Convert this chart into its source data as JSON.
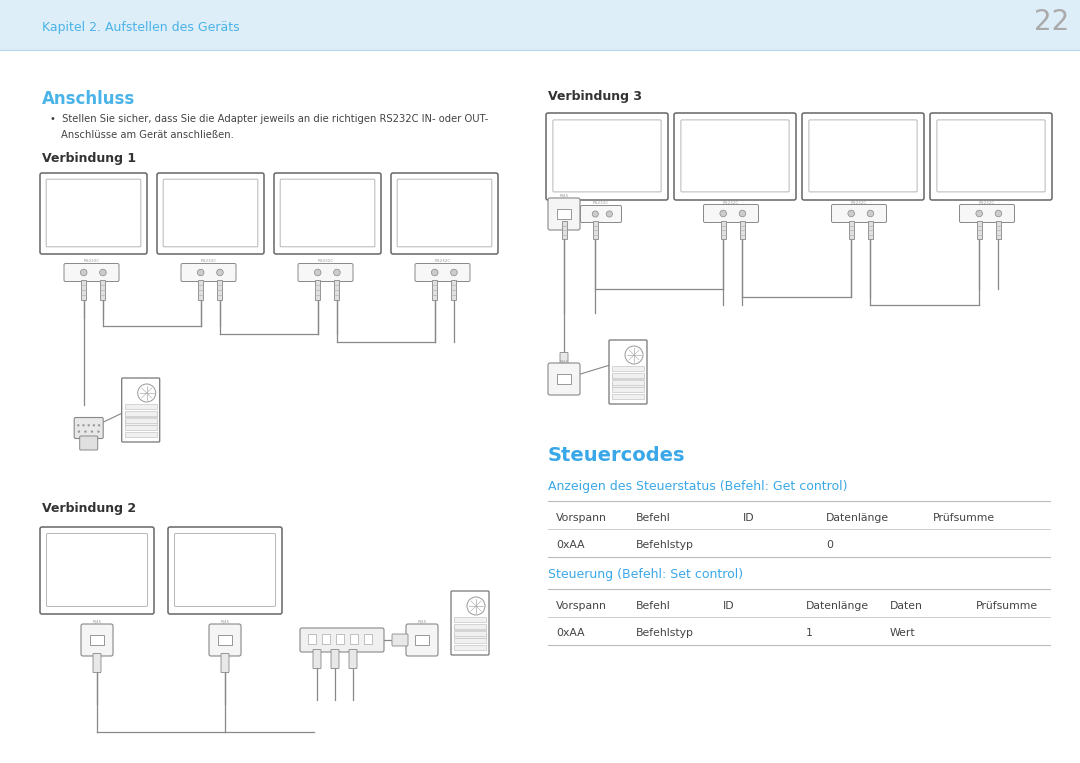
{
  "bg_header_color": "#deeef8",
  "bg_body_color": "#ffffff",
  "header_text": "Kapitel 2. Aufstellen des Geräts",
  "header_text_color": "#4ab3e8",
  "page_number": "22",
  "section_anschluss": "Anschluss",
  "section_anschluss_color": "#4ab3e8",
  "bullet_text_line1": "Stellen Sie sicher, dass Sie die Adapter jeweils an die richtigen RS232C IN- oder OUT-",
  "bullet_text_line2": "Anschlüsse am Gerät anschließen.",
  "bullet_color": "#444444",
  "verbindung1": "Verbindung 1",
  "verbindung2": "Verbindung 2",
  "verbindung3": "Verbindung 3",
  "verbindung_color": "#333333",
  "steuercodes_title": "Steuercodes",
  "steuercodes_color": "#3aa8e8",
  "anzeigen_title": "Anzeigen des Steuerstatus (Befehl: Get control)",
  "anzeigen_color": "#3aa8e8",
  "steuerung_title": "Steuerung (Befehl: Set control)",
  "steuerung_color": "#3aa8e8",
  "table1_headers": [
    "Vorspann",
    "Befehl",
    "ID",
    "Datenlänge",
    "Prüfsumme"
  ],
  "table1_row": [
    "0xAA",
    "Befehlstyp",
    "",
    "0",
    ""
  ],
  "table2_headers": [
    "Vorspann",
    "Befehl",
    "ID",
    "Datenlänge",
    "Daten",
    "Prüfsumme"
  ],
  "table2_row": [
    "0xAA",
    "Befehlstyp",
    "",
    "1",
    "Wert",
    ""
  ],
  "table_text_color": "#444444",
  "line_color": "#bbbbbb",
  "monitor_edge": "#666666",
  "connector_edge": "#888888",
  "wire_color": "#888888",
  "computer_edge": "#777777"
}
